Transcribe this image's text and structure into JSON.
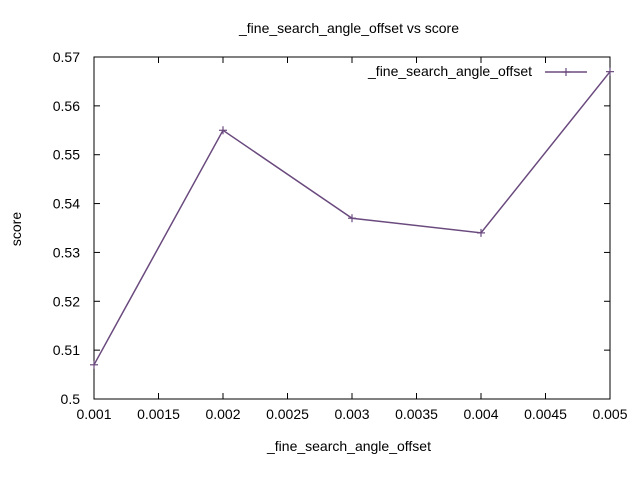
{
  "chart_data": {
    "type": "line",
    "title": "_fine_search_angle_offset vs score",
    "xlabel": "_fine_search_angle_offset",
    "ylabel": "score",
    "xlim": [
      0.001,
      0.005
    ],
    "ylim": [
      0.5,
      0.57
    ],
    "x_ticks": [
      "0.001",
      "0.0015",
      "0.002",
      "0.0025",
      "0.003",
      "0.0035",
      "0.004",
      "0.0045",
      "0.005"
    ],
    "y_ticks": [
      "0.5",
      "0.51",
      "0.52",
      "0.53",
      "0.54",
      "0.55",
      "0.56",
      "0.57"
    ],
    "grid": false,
    "legend_position": "top-right",
    "series": [
      {
        "name": "_fine_search_angle_offset",
        "color": "#6a4a7e",
        "marker": "plus",
        "x": [
          0.001,
          0.002,
          0.003,
          0.004,
          0.005
        ],
        "y": [
          0.507,
          0.555,
          0.537,
          0.534,
          0.567
        ]
      }
    ]
  }
}
